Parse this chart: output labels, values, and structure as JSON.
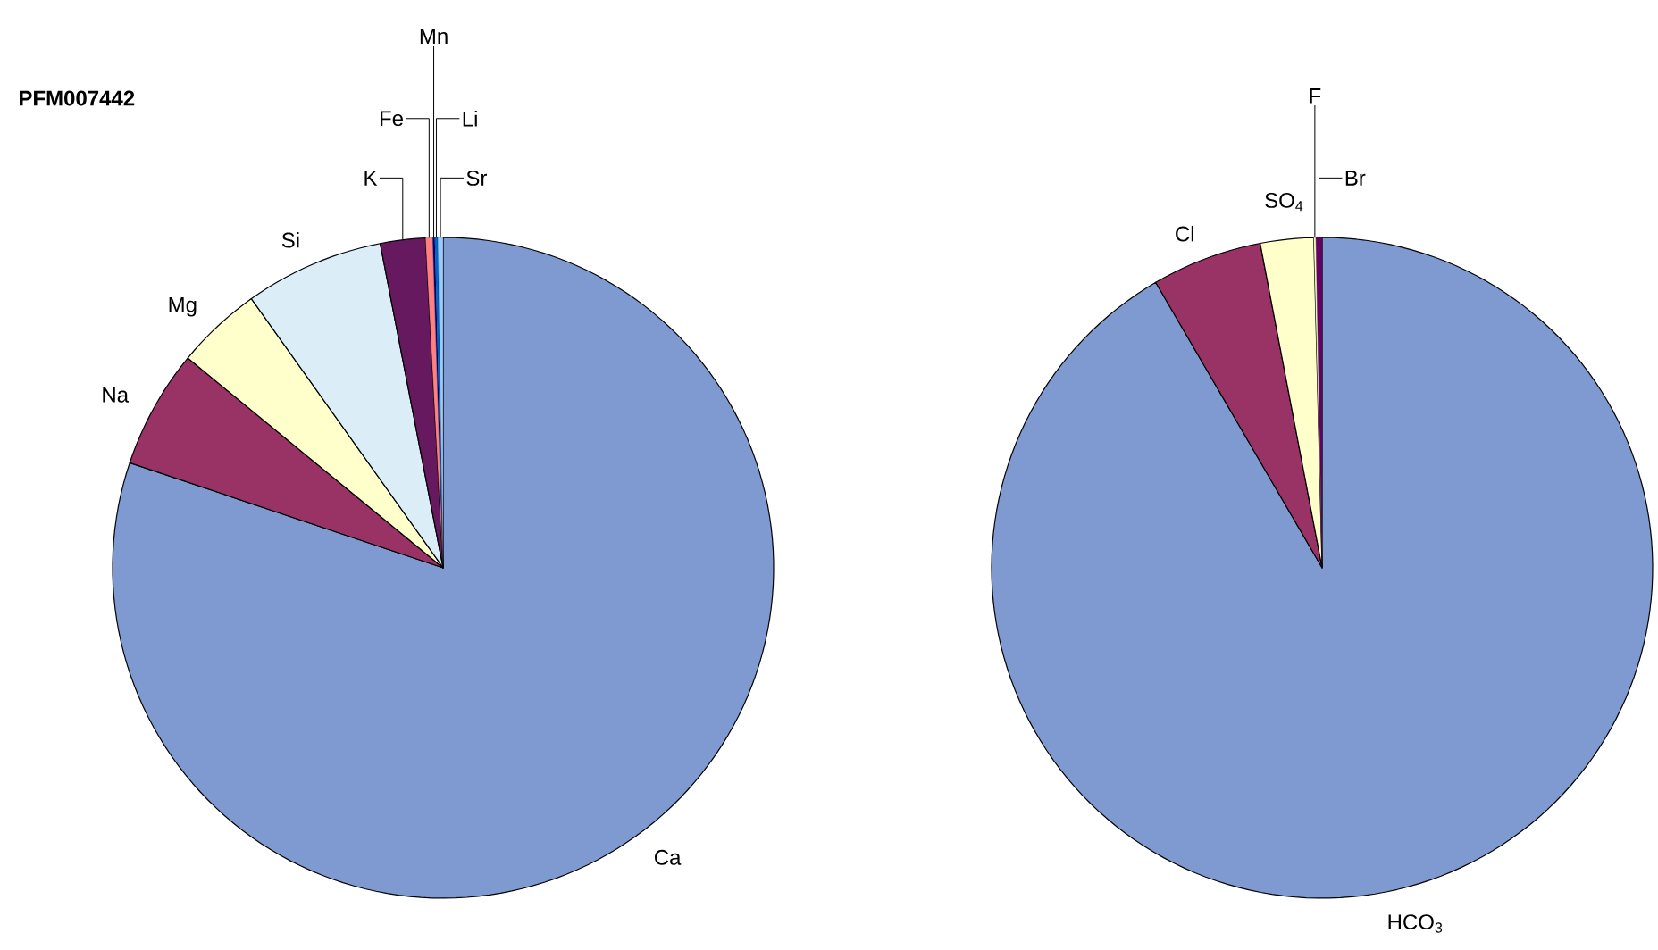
{
  "chart_data": [
    {
      "type": "pie",
      "title": "PFM007442",
      "categories": [
        "Ca",
        "Na",
        "Mg",
        "Si",
        "K",
        "Fe",
        "Mn",
        "Li",
        "Sr"
      ],
      "values": [
        80.15,
        5.8,
        4.2,
        6.8,
        2.2,
        0.35,
        0.1,
        0.15,
        0.25
      ],
      "colors": [
        "#7f9ad0",
        "#993366",
        "#ffffcc",
        "#dbeef8",
        "#66195f",
        "#ff8080",
        "#000080",
        "#0066cc",
        "#99ccff"
      ]
    },
    {
      "type": "pie",
      "categories": [
        "HCO$_{3}$",
        "Cl",
        "SO$_{4}$",
        "F",
        "Br"
      ],
      "values": [
        91.6,
        5.4,
        2.6,
        0.1,
        0.3
      ],
      "colors": [
        "#7f9ad0",
        "#993366",
        "#ffffcc",
        "#ffffcc",
        "#660066"
      ]
    }
  ]
}
